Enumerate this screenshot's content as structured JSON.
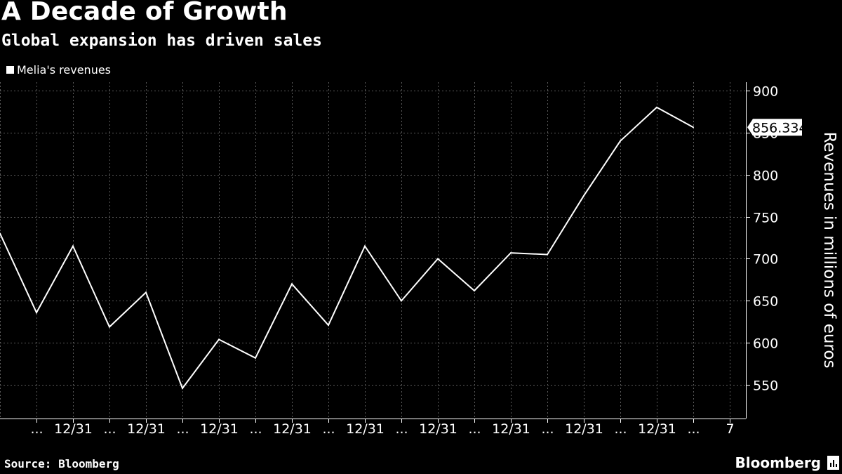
{
  "header": {
    "title": "A Decade of Growth",
    "subtitle": "Global expansion has driven sales"
  },
  "footer": {
    "source": "Source: Bloomberg",
    "brand": "Bloomberg"
  },
  "colors": {
    "background": "#000000",
    "line": "#ffffff",
    "grid": "#5a5a5a",
    "text": "#ffffff"
  },
  "chart_data": {
    "type": "line",
    "title": "A Decade of Growth",
    "subtitle": "Global expansion has driven sales",
    "ylabel": "Revenues in millions of euros",
    "ylim": [
      510,
      910
    ],
    "yticks": [
      550,
      600,
      650,
      700,
      750,
      800,
      850,
      900
    ],
    "xtick_labels": [
      "...",
      "12/31",
      "...",
      "12/31",
      "...",
      "12/31",
      "...",
      "12/31",
      "...",
      "12/31",
      "...",
      "12/31",
      "...",
      "12/31",
      "...",
      "12/31",
      "...",
      "12/31",
      "...",
      "7"
    ],
    "legend": {
      "position": "top-left"
    },
    "grid": true,
    "last_value_label": "856.3340",
    "series": [
      {
        "name": "Melia's revenues",
        "values": [
          730,
          636,
          715,
          619,
          660,
          546,
          604,
          582,
          670,
          621,
          715,
          650,
          700,
          662,
          707,
          705,
          775,
          840,
          880,
          856.334
        ]
      }
    ]
  }
}
